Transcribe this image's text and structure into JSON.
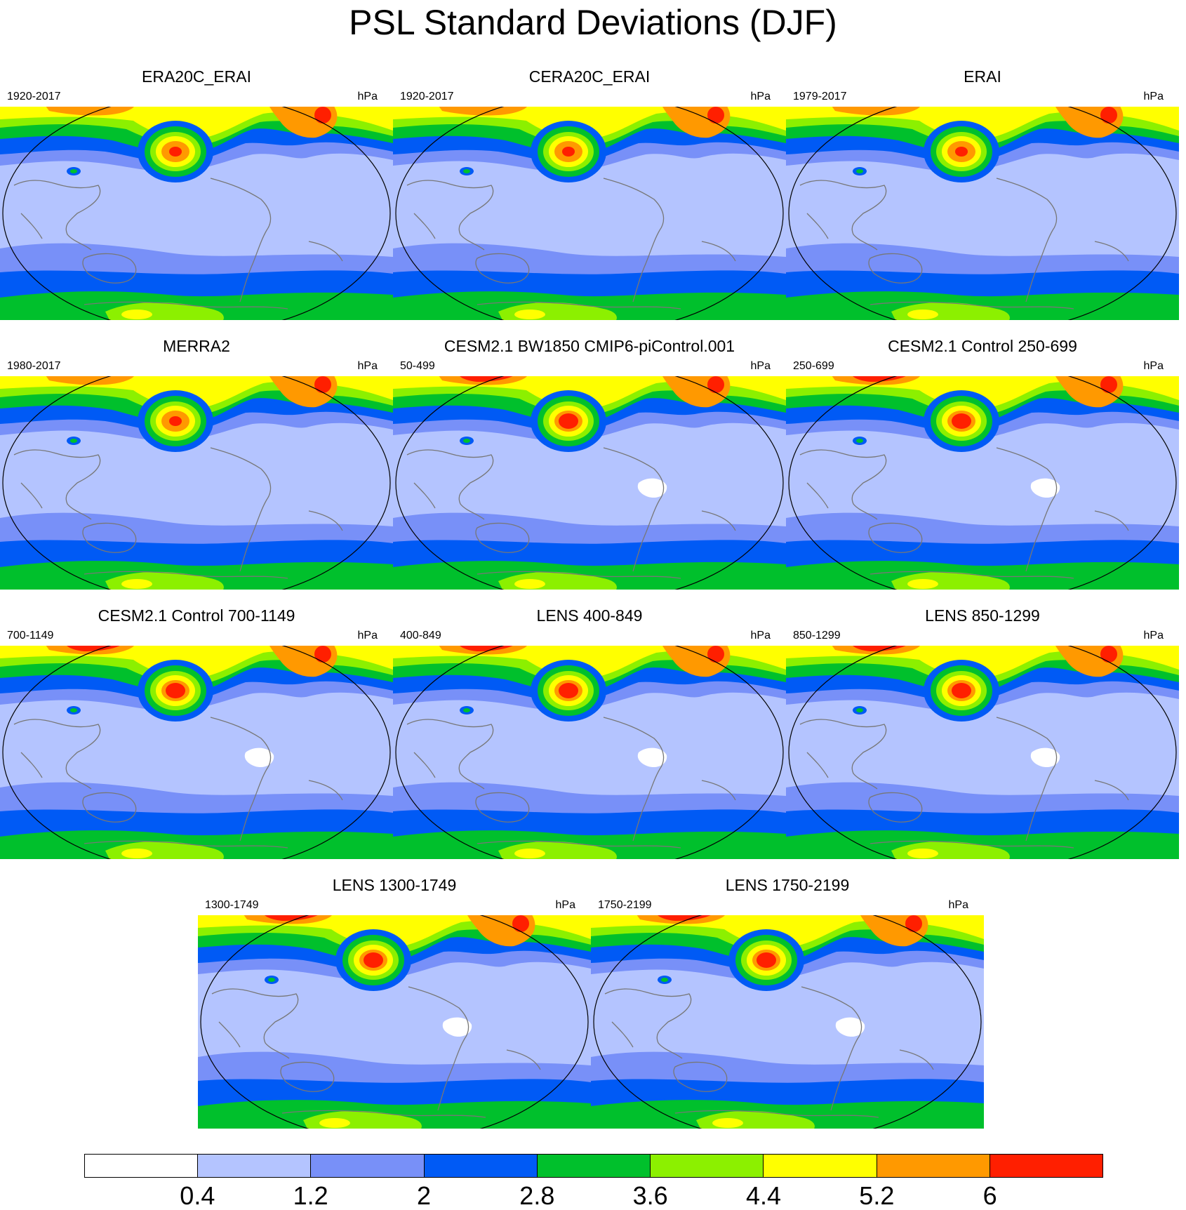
{
  "title": "PSL Standard Deviations (DJF)",
  "panels": [
    {
      "title": "ERA20C_ERAI",
      "period": "1920-2017",
      "units": "hPa",
      "variant": "obs"
    },
    {
      "title": "CERA20C_ERAI",
      "period": "1920-2017",
      "units": "hPa",
      "variant": "obs"
    },
    {
      "title": "ERAI",
      "period": "1979-2017",
      "units": "hPa",
      "variant": "obs"
    },
    {
      "title": "MERRA2",
      "period": "1980-2017",
      "units": "hPa",
      "variant": "obs"
    },
    {
      "title": "CESM2.1 BW1850 CMIP6-piControl.001",
      "period": "50-499",
      "units": "hPa",
      "variant": "model"
    },
    {
      "title": "CESM2.1 Control 250-699",
      "period": "250-699",
      "units": "hPa",
      "variant": "model"
    },
    {
      "title": "CESM2.1 Control 700-1149",
      "period": "700-1149",
      "units": "hPa",
      "variant": "model"
    },
    {
      "title": "LENS 400-849",
      "period": "400-849",
      "units": "hPa",
      "variant": "model"
    },
    {
      "title": "LENS 850-1299",
      "period": "850-1299",
      "units": "hPa",
      "variant": "model"
    },
    {
      "title": "LENS 1300-1749",
      "period": "1300-1749",
      "units": "hPa",
      "variant": "model"
    },
    {
      "title": "LENS 1750-2199",
      "period": "1750-2199",
      "units": "hPa",
      "variant": "model"
    }
  ],
  "colorbar": {
    "levels": [
      "0.4",
      "1.2",
      "2",
      "2.8",
      "3.6",
      "4.4",
      "5.2",
      "6"
    ],
    "colors": [
      "#ffffff",
      "#b4c4ff",
      "#7890f8",
      "#005af5",
      "#00c02c",
      "#8cf000",
      "#ffff00",
      "#ff9900",
      "#ff1f00"
    ]
  },
  "map_colors": {
    "land_outline": "#777777",
    "border": "#000000"
  }
}
